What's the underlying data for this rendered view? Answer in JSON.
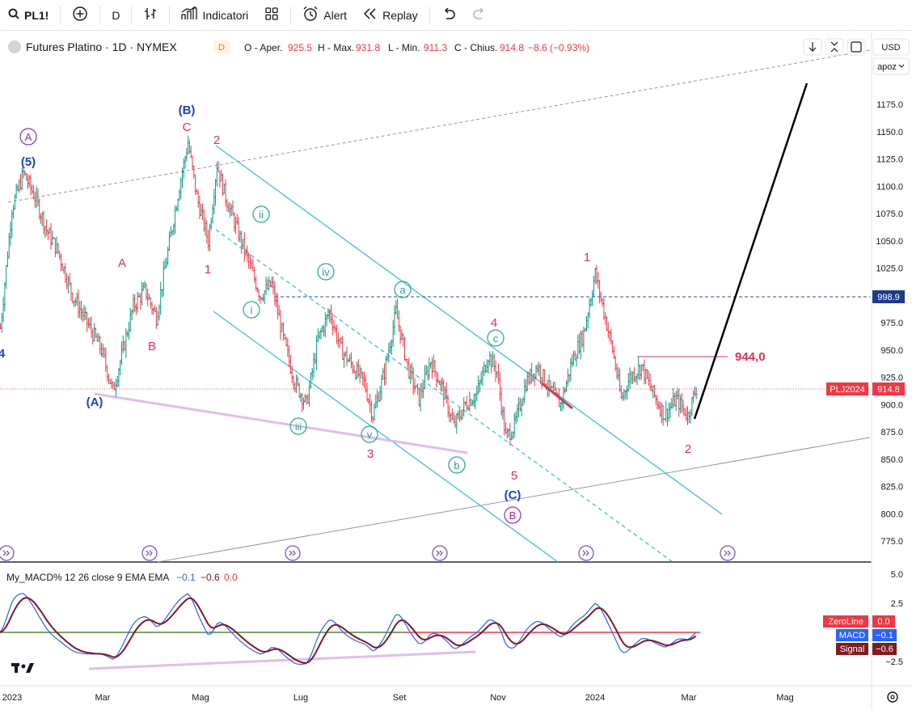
{
  "toolbar": {
    "symbol": "PL1!",
    "interval": "D",
    "indicators_label": "Indicatori",
    "alert_label": "Alert",
    "replay_label": "Replay"
  },
  "header": {
    "title": "Futures Platino · 1D · NYMEX",
    "badge": "D",
    "ohlc": [
      {
        "label": "O - Aper.",
        "value": "925.5"
      },
      {
        "label": "H - Max.",
        "value": "931.8"
      },
      {
        "label": "L - Min.",
        "value": "911.3"
      },
      {
        "label": "C - Chius.",
        "value": "914.8"
      }
    ],
    "change": "−8.6 (−0.93%)",
    "currency": "USD",
    "scale_btn": "apoz"
  },
  "colors": {
    "up": "#089981",
    "down": "#f23645",
    "wave_red": "#e03050",
    "wave_blue": "#2040c0",
    "wave_purple": "#9c27b0",
    "wave_teal": "#22a693",
    "channel": "#3fc1d4",
    "macd": "#2962ff",
    "signal": "#801922",
    "zeroline": "#f23645"
  },
  "chart_data": {
    "type": "ohlc",
    "symbol": "PLJ2024",
    "x_ticks": [
      "2023",
      "Mar",
      "Mag",
      "Lug",
      "Set",
      "Nov",
      "2024",
      "Mar",
      "Mag"
    ],
    "y_ticks": [
      1175,
      1150,
      1125,
      1100,
      1075,
      1050,
      1025,
      1000,
      975,
      950,
      925,
      900,
      875,
      850,
      825,
      800,
      775
    ],
    "y_tick_labels": [
      "1175.0",
      "1150.0",
      "1125.0",
      "1100.0",
      "1075.0",
      "1050.0",
      "1025.0",
      "1000.0",
      "975.0",
      "950.0",
      "925.0",
      "900.0",
      "875.0",
      "850.0",
      "825.0",
      "800.0",
      "775.0"
    ],
    "ylim": [
      755,
      1200
    ],
    "last_price_label": "914.8",
    "level_998": "998.9",
    "level_944": "944,0",
    "price_path": [
      {
        "t": 0,
        "p": 970
      },
      {
        "t": 8,
        "p": 1080
      },
      {
        "t": 16,
        "p": 1112
      },
      {
        "t": 24,
        "p": 1090
      },
      {
        "t": 32,
        "p": 1060
      },
      {
        "t": 40,
        "p": 1040
      },
      {
        "t": 50,
        "p": 1000
      },
      {
        "t": 60,
        "p": 975
      },
      {
        "t": 70,
        "p": 950
      },
      {
        "t": 78,
        "p": 912
      },
      {
        "t": 84,
        "p": 945
      },
      {
        "t": 92,
        "p": 990
      },
      {
        "t": 100,
        "p": 1005
      },
      {
        "t": 108,
        "p": 980
      },
      {
        "t": 116,
        "p": 1040
      },
      {
        "t": 124,
        "p": 1100
      },
      {
        "t": 130,
        "p": 1140
      },
      {
        "t": 136,
        "p": 1090
      },
      {
        "t": 144,
        "p": 1050
      },
      {
        "t": 150,
        "p": 1120
      },
      {
        "t": 156,
        "p": 1090
      },
      {
        "t": 164,
        "p": 1060
      },
      {
        "t": 172,
        "p": 1030
      },
      {
        "t": 180,
        "p": 1000
      },
      {
        "t": 188,
        "p": 1010
      },
      {
        "t": 196,
        "p": 960
      },
      {
        "t": 204,
        "p": 920
      },
      {
        "t": 212,
        "p": 900
      },
      {
        "t": 220,
        "p": 960
      },
      {
        "t": 228,
        "p": 985
      },
      {
        "t": 236,
        "p": 950
      },
      {
        "t": 244,
        "p": 935
      },
      {
        "t": 252,
        "p": 920
      },
      {
        "t": 258,
        "p": 890
      },
      {
        "t": 266,
        "p": 930
      },
      {
        "t": 274,
        "p": 985
      },
      {
        "t": 282,
        "p": 935
      },
      {
        "t": 290,
        "p": 905
      },
      {
        "t": 298,
        "p": 940
      },
      {
        "t": 306,
        "p": 915
      },
      {
        "t": 314,
        "p": 880
      },
      {
        "t": 322,
        "p": 900
      },
      {
        "t": 330,
        "p": 910
      },
      {
        "t": 338,
        "p": 945
      },
      {
        "t": 344,
        "p": 930
      },
      {
        "t": 350,
        "p": 870
      },
      {
        "t": 356,
        "p": 880
      },
      {
        "t": 364,
        "p": 920
      },
      {
        "t": 372,
        "p": 935
      },
      {
        "t": 380,
        "p": 915
      },
      {
        "t": 388,
        "p": 900
      },
      {
        "t": 396,
        "p": 940
      },
      {
        "t": 404,
        "p": 965
      },
      {
        "t": 412,
        "p": 1020
      },
      {
        "t": 418,
        "p": 985
      },
      {
        "t": 424,
        "p": 950
      },
      {
        "t": 430,
        "p": 905
      },
      {
        "t": 436,
        "p": 925
      },
      {
        "t": 444,
        "p": 935
      },
      {
        "t": 452,
        "p": 910
      },
      {
        "t": 460,
        "p": 890
      },
      {
        "t": 468,
        "p": 905
      },
      {
        "t": 476,
        "p": 890
      },
      {
        "t": 482,
        "p": 915
      }
    ],
    "projection": [
      {
        "t": 482,
        "p": 890
      },
      {
        "t": 560,
        "p": 1190
      }
    ],
    "macd_panel": {
      "title": "My_MACD% 12 26 close 9 EMA EMA",
      "values": [
        "−0.1",
        "−0.6",
        "0.0"
      ],
      "y_ticks": [
        "5.0",
        "2.5",
        "0.0",
        "−2.5"
      ],
      "labels": [
        {
          "name": "ZeroLine",
          "value": "0.0"
        },
        {
          "name": "MACD",
          "value": "−0.1"
        },
        {
          "name": "Signal",
          "value": "−0.6"
        }
      ]
    }
  },
  "wave_labels": {
    "A_circ": "A",
    "five_paren": "(5)",
    "B_paren": "(B)",
    "C_top": "C",
    "two_top": "2",
    "one_left": "1",
    "A_red": "A",
    "B_red": "B",
    "A_paren": "(A)",
    "ii": "ii",
    "iv": "iv",
    "i": "i",
    "iii": "iii",
    "v": "v",
    "three": "3",
    "a": "a",
    "b": "b",
    "c": "c",
    "four": "4",
    "five": "5",
    "C_paren": "(C)",
    "B_circ": "B",
    "one_right": "1",
    "two_right": "2",
    "four_left": "4"
  }
}
